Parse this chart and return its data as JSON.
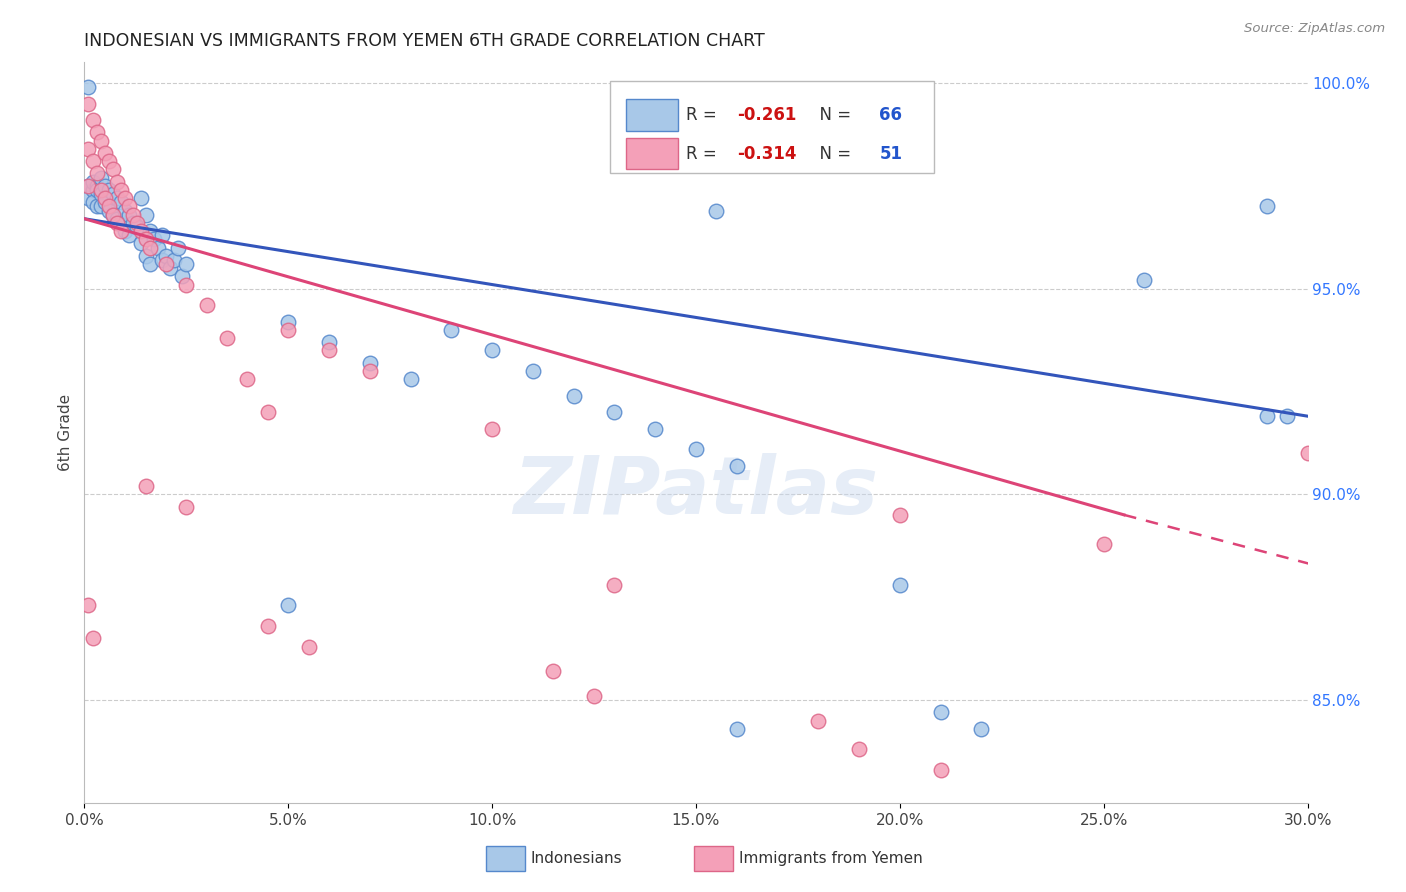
{
  "title": "INDONESIAN VS IMMIGRANTS FROM YEMEN 6TH GRADE CORRELATION CHART",
  "source": "Source: ZipAtlas.com",
  "ylabel": "6th Grade",
  "xlim": [
    0.0,
    0.3
  ],
  "ylim": [
    0.825,
    1.005
  ],
  "R_blue": -0.261,
  "N_blue": 66,
  "R_pink": -0.314,
  "N_pink": 51,
  "legend_label_blue": "Indonesians",
  "legend_label_pink": "Immigrants from Yemen",
  "watermark": "ZIPatlas",
  "blue_fill": "#a8c8e8",
  "pink_fill": "#f4a0b8",
  "blue_edge": "#5588cc",
  "pink_edge": "#dd6688",
  "blue_line_color": "#3355bb",
  "pink_line_color": "#dd4477",
  "right_ytick_vals": [
    0.85,
    0.9,
    0.95,
    1.0
  ],
  "right_ytick_labels": [
    "85.0%",
    "90.0%",
    "95.0%",
    "100.0%"
  ],
  "blue_line": [
    [
      0.0,
      0.967
    ],
    [
      0.3,
      0.919
    ]
  ],
  "pink_line_solid": [
    [
      0.0,
      0.967
    ],
    [
      0.255,
      0.895
    ]
  ],
  "pink_line_dashed": [
    [
      0.255,
      0.895
    ],
    [
      0.32,
      0.878
    ]
  ],
  "blue_pts": [
    [
      0.001,
      0.999
    ],
    [
      0.29,
      0.97
    ],
    [
      0.295,
      0.919
    ],
    [
      0.001,
      0.975
    ],
    [
      0.001,
      0.972
    ],
    [
      0.002,
      0.974
    ],
    [
      0.002,
      0.971
    ],
    [
      0.002,
      0.976
    ],
    [
      0.003,
      0.975
    ],
    [
      0.003,
      0.974
    ],
    [
      0.003,
      0.97
    ],
    [
      0.004,
      0.977
    ],
    [
      0.004,
      0.973
    ],
    [
      0.004,
      0.97
    ],
    [
      0.005,
      0.975
    ],
    [
      0.005,
      0.971
    ],
    [
      0.006,
      0.974
    ],
    [
      0.006,
      0.969
    ],
    [
      0.007,
      0.973
    ],
    [
      0.007,
      0.968
    ],
    [
      0.008,
      0.972
    ],
    [
      0.008,
      0.967
    ],
    [
      0.009,
      0.971
    ],
    [
      0.009,
      0.966
    ],
    [
      0.01,
      0.969
    ],
    [
      0.01,
      0.964
    ],
    [
      0.011,
      0.968
    ],
    [
      0.011,
      0.963
    ],
    [
      0.012,
      0.966
    ],
    [
      0.013,
      0.965
    ],
    [
      0.014,
      0.972
    ],
    [
      0.014,
      0.961
    ],
    [
      0.015,
      0.968
    ],
    [
      0.015,
      0.958
    ],
    [
      0.016,
      0.964
    ],
    [
      0.016,
      0.956
    ],
    [
      0.017,
      0.962
    ],
    [
      0.018,
      0.96
    ],
    [
      0.019,
      0.963
    ],
    [
      0.019,
      0.957
    ],
    [
      0.02,
      0.958
    ],
    [
      0.021,
      0.955
    ],
    [
      0.022,
      0.957
    ],
    [
      0.023,
      0.96
    ],
    [
      0.024,
      0.953
    ],
    [
      0.025,
      0.956
    ],
    [
      0.05,
      0.942
    ],
    [
      0.06,
      0.937
    ],
    [
      0.07,
      0.932
    ],
    [
      0.08,
      0.928
    ],
    [
      0.09,
      0.94
    ],
    [
      0.1,
      0.935
    ],
    [
      0.11,
      0.93
    ],
    [
      0.12,
      0.924
    ],
    [
      0.13,
      0.92
    ],
    [
      0.14,
      0.916
    ],
    [
      0.15,
      0.911
    ],
    [
      0.16,
      0.907
    ],
    [
      0.05,
      0.873
    ],
    [
      0.2,
      0.878
    ],
    [
      0.155,
      0.969
    ],
    [
      0.21,
      0.847
    ],
    [
      0.26,
      0.952
    ],
    [
      0.29,
      0.919
    ],
    [
      0.16,
      0.843
    ],
    [
      0.22,
      0.843
    ]
  ],
  "pink_pts": [
    [
      0.001,
      0.995
    ],
    [
      0.001,
      0.984
    ],
    [
      0.001,
      0.975
    ],
    [
      0.002,
      0.991
    ],
    [
      0.002,
      0.981
    ],
    [
      0.003,
      0.988
    ],
    [
      0.003,
      0.978
    ],
    [
      0.004,
      0.986
    ],
    [
      0.004,
      0.974
    ],
    [
      0.005,
      0.983
    ],
    [
      0.005,
      0.972
    ],
    [
      0.006,
      0.981
    ],
    [
      0.006,
      0.97
    ],
    [
      0.007,
      0.979
    ],
    [
      0.007,
      0.968
    ],
    [
      0.008,
      0.976
    ],
    [
      0.008,
      0.966
    ],
    [
      0.009,
      0.974
    ],
    [
      0.009,
      0.964
    ],
    [
      0.01,
      0.972
    ],
    [
      0.011,
      0.97
    ],
    [
      0.012,
      0.968
    ],
    [
      0.013,
      0.966
    ],
    [
      0.014,
      0.964
    ],
    [
      0.015,
      0.962
    ],
    [
      0.016,
      0.96
    ],
    [
      0.02,
      0.956
    ],
    [
      0.025,
      0.951
    ],
    [
      0.03,
      0.946
    ],
    [
      0.035,
      0.938
    ],
    [
      0.04,
      0.928
    ],
    [
      0.045,
      0.92
    ],
    [
      0.05,
      0.94
    ],
    [
      0.06,
      0.935
    ],
    [
      0.07,
      0.93
    ],
    [
      0.1,
      0.916
    ],
    [
      0.015,
      0.902
    ],
    [
      0.025,
      0.897
    ],
    [
      0.13,
      0.878
    ],
    [
      0.001,
      0.873
    ],
    [
      0.002,
      0.865
    ],
    [
      0.045,
      0.868
    ],
    [
      0.055,
      0.863
    ],
    [
      0.115,
      0.857
    ],
    [
      0.125,
      0.851
    ],
    [
      0.18,
      0.845
    ],
    [
      0.19,
      0.838
    ],
    [
      0.21,
      0.833
    ],
    [
      0.2,
      0.895
    ],
    [
      0.25,
      0.888
    ],
    [
      0.3,
      0.91
    ]
  ]
}
